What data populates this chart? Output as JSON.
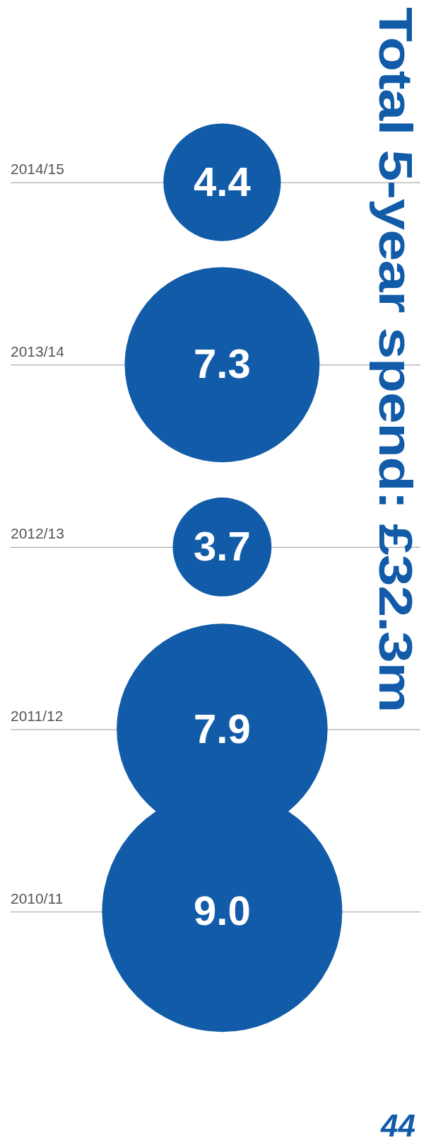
{
  "chart_data": {
    "type": "other",
    "title": "Total 5-year spend: £32.3m",
    "legend": false,
    "categories": [
      "2014/15",
      "2013/14",
      "2012/13",
      "2011/12",
      "2010/11"
    ],
    "values": [
      4.4,
      7.3,
      3.7,
      7.9,
      9.0
    ],
    "value_labels": [
      "4.4",
      "7.3",
      "3.7",
      "7.9",
      "9.0"
    ],
    "color": "#115ba8",
    "annotations": [
      "44"
    ]
  }
}
